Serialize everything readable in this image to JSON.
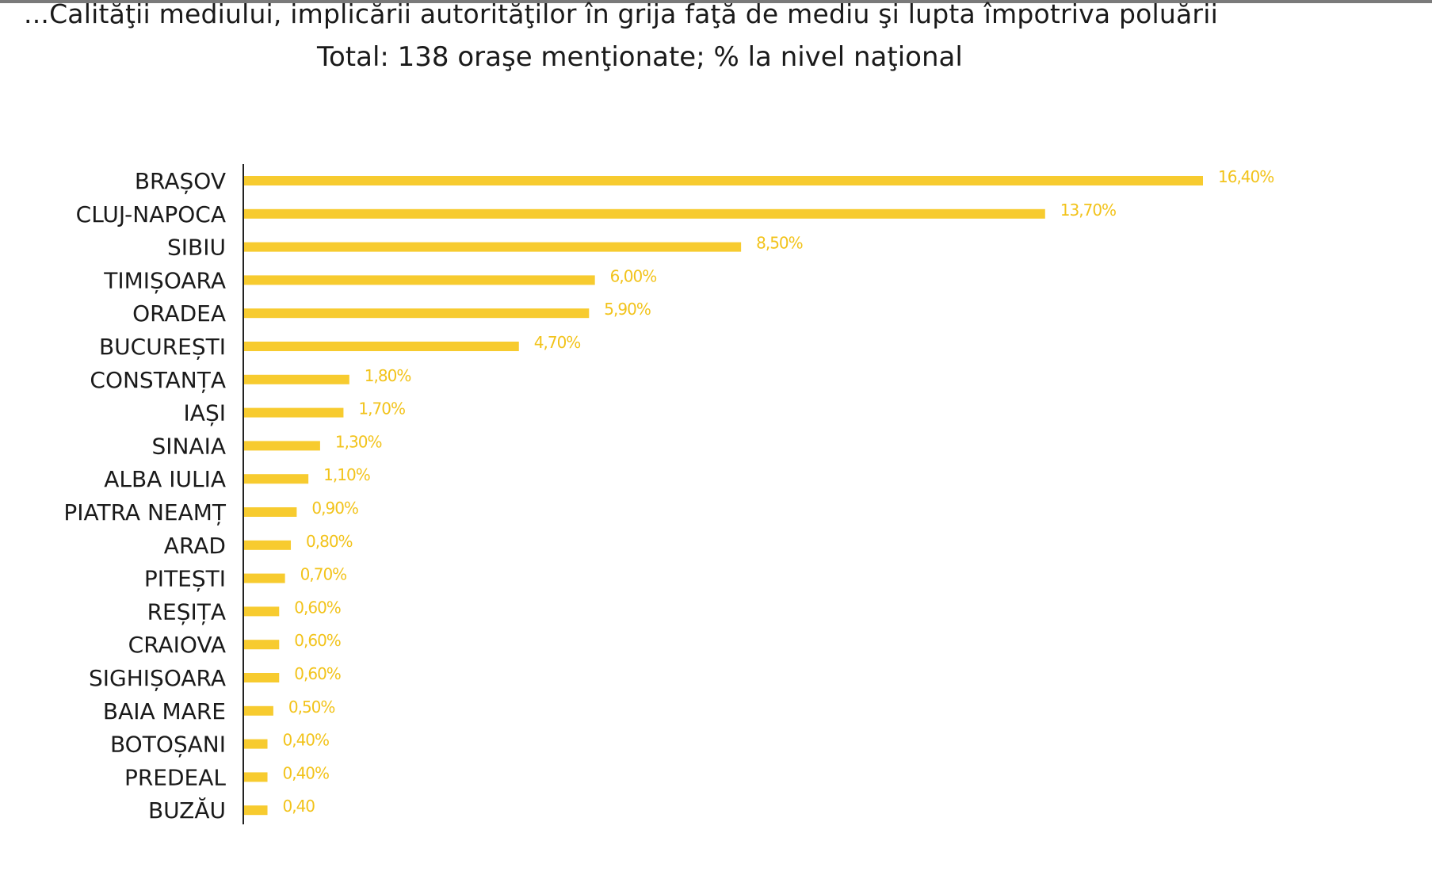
{
  "header": {
    "title": "...Calităţii mediului, implicării autorităţilor în grija faţă de mediu şi lupta împotriva poluării",
    "subtitle": "Total: 138 oraşe menţionate; % la nivel naţional"
  },
  "colors": {
    "bar": "#f7cb2f",
    "label": "#f2c31b",
    "axis": "#222222"
  },
  "chart_data": {
    "type": "bar",
    "orientation": "horizontal",
    "title": "...Calităţii mediului, implicării autorităţilor în grija faţă de mediu şi lupta împotriva poluării",
    "subtitle": "Total: 138 oraşe menţionate; % la nivel naţional",
    "categories": [
      "BRAȘOV",
      "CLUJ-NAPOCA",
      "SIBIU",
      "TIMIȘOARA",
      "ORADEA",
      "BUCUREȘTI",
      "CONSTANȚA",
      "IAȘI",
      "SINAIA",
      "ALBA IULIA",
      "PIATRA NEAMȚ",
      "ARAD",
      "PITEȘTI",
      "REȘIȚA",
      "CRAIOVA",
      "SIGHIȘOARA",
      "BAIA MARE",
      "BOTOȘANI",
      "PREDEAL",
      "BUZĂU"
    ],
    "values": [
      16.4,
      13.7,
      8.5,
      6.0,
      5.9,
      4.7,
      1.8,
      1.7,
      1.3,
      1.1,
      0.9,
      0.8,
      0.7,
      0.6,
      0.6,
      0.6,
      0.5,
      0.4,
      0.4,
      0.4
    ],
    "value_labels": [
      "16,40%",
      "13,70%",
      "8,50%",
      "6,00%",
      "5,90%",
      "4,70%",
      "1,80%",
      "1,70%",
      "1,30%",
      "1,10%",
      "0,90%",
      "0,80%",
      "0,70%",
      "0,60%",
      "0,60%",
      "0,60%",
      "0,50%",
      "0,40%",
      "0,40%",
      "0,40"
    ],
    "xlabel": "",
    "ylabel": "",
    "xlim": [
      0,
      16.4
    ],
    "grid": false,
    "legend": "none"
  }
}
